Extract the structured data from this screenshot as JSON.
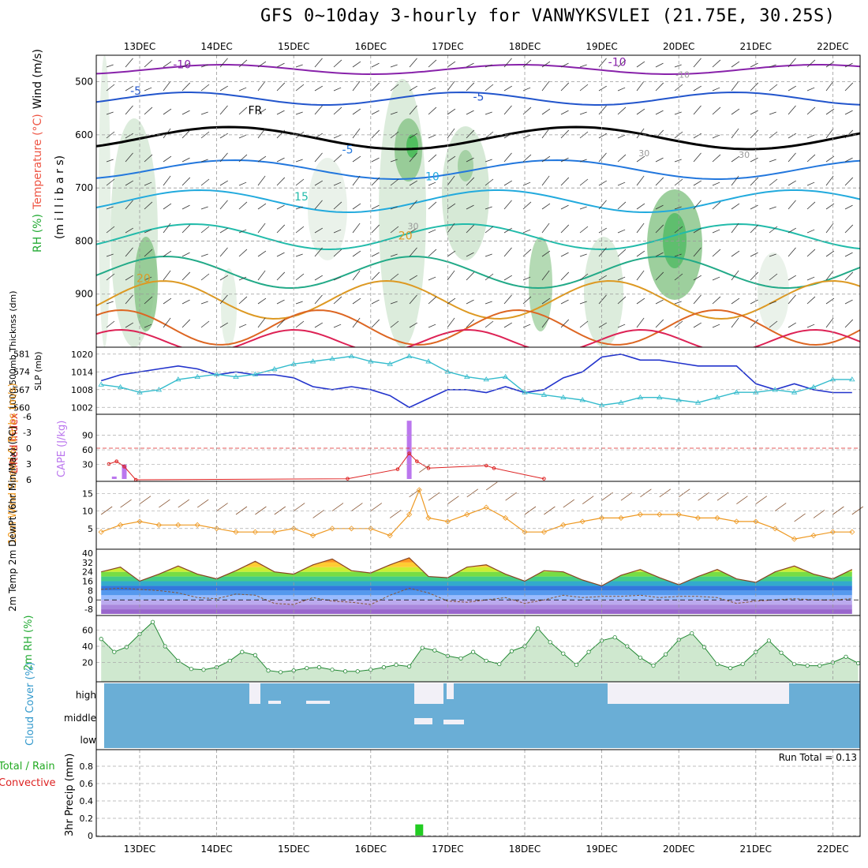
{
  "title": "GFS 0~10day 3-hourly for VANWYKSVLEI (21.75E, 30.25S)",
  "colors": {
    "rh_green": "#33bb44",
    "slp": "#2233cc",
    "thickness": "#33bbcc",
    "cape": "#bb77ee",
    "lifted": "#dd2222",
    "wind": "#ee9922",
    "cloud_blue": "#6aaed6",
    "precip": "#22cc22"
  },
  "chart_data": [
    {
      "id": "upper_air",
      "type": "heatmap",
      "ylabel_parts": [
        "RH (%)",
        "Temperature (°C)",
        "Wind (m/s)"
      ],
      "ylabel_sub": "(m i l l i b a r s)",
      "x_ticks": [
        "13DEC",
        "14DEC",
        "15DEC",
        "16DEC",
        "17DEC",
        "18DEC",
        "19DEC",
        "20DEC",
        "21DEC",
        "22DEC"
      ],
      "y_ticks": [
        "500",
        "600",
        "700",
        "800",
        "900"
      ],
      "ylim": [
        1000,
        450
      ],
      "contour_labels": [
        {
          "text": "-10",
          "color": "#8822aa",
          "x": 13.55,
          "y": 467
        },
        {
          "text": "-10",
          "color": "#8822aa",
          "x": 19.2,
          "y": 463
        },
        {
          "text": "-5",
          "color": "#2255cc",
          "x": 12.95,
          "y": 517
        },
        {
          "text": "-5",
          "color": "#2255cc",
          "x": 17.4,
          "y": 528
        },
        {
          "text": "FR",
          "color": "#000000",
          "x": 14.5,
          "y": 553
        },
        {
          "text": "-5",
          "color": "#2277dd",
          "x": 15.7,
          "y": 628
        },
        {
          "text": "10",
          "color": "#22aadd",
          "x": 16.8,
          "y": 678
        },
        {
          "text": "15",
          "color": "#22bbaa",
          "x": 15.1,
          "y": 716
        },
        {
          "text": "20",
          "color": "#dd9922",
          "x": 16.45,
          "y": 790
        },
        {
          "text": "20",
          "color": "#dd9922",
          "x": 13.05,
          "y": 870
        },
        {
          "text": "30",
          "color": "#999999",
          "x": 16.55,
          "y": 770
        },
        {
          "text": "30",
          "color": "#999999",
          "x": 19.55,
          "y": 633
        },
        {
          "text": "30",
          "color": "#999999",
          "x": 20.85,
          "y": 636
        },
        {
          "text": "-10",
          "color": "#999999",
          "x": 20.05,
          "y": 485
        }
      ]
    },
    {
      "id": "slp_thickness",
      "type": "line",
      "ylabel_left": "1000-500mb Thicknss (dm)",
      "ylabel_right": "SLP (mb)",
      "left_ticks": [
        "581",
        "574",
        "567",
        "560"
      ],
      "right_ticks": [
        "1020",
        "1014",
        "1008",
        "1002"
      ],
      "x": [
        12.5,
        12.75,
        13.0,
        13.25,
        13.5,
        13.75,
        14.0,
        14.25,
        14.5,
        14.75,
        15.0,
        15.25,
        15.5,
        15.75,
        16.0,
        16.25,
        16.5,
        16.75,
        17.0,
        17.25,
        17.5,
        17.75,
        18.0,
        18.25,
        18.5,
        18.75,
        19.0,
        19.25,
        19.5,
        19.75,
        20.0,
        20.25,
        20.5,
        20.75,
        21.0,
        21.25,
        21.5,
        21.75,
        22.0,
        22.25
      ],
      "series": [
        {
          "name": "SLP",
          "values": [
            1011,
            1013,
            1014,
            1015,
            1016,
            1015,
            1013,
            1014,
            1013,
            1013,
            1012,
            1009,
            1008,
            1009,
            1008,
            1006,
            1002,
            1005,
            1008,
            1008,
            1007,
            1009,
            1007,
            1008,
            1012,
            1014,
            1019,
            1020,
            1018,
            1018,
            1017,
            1016,
            1016,
            1016,
            1010,
            1008,
            1010,
            1008,
            1007,
            1007
          ]
        },
        {
          "name": "Thickness",
          "values": [
            569,
            568,
            566,
            567,
            571,
            572,
            573,
            572,
            573,
            575,
            577,
            578,
            579,
            580,
            578,
            577,
            580,
            578,
            574,
            572,
            571,
            572,
            566,
            565,
            564,
            563,
            561,
            562,
            564,
            564,
            563,
            562,
            564,
            566,
            566,
            567,
            566,
            568,
            571,
            571
          ]
        }
      ]
    },
    {
      "id": "cape_lifted",
      "type": "bar",
      "ylabel_left": "Lifted Index",
      "ylabel_right": "CAPE (J/kg)",
      "left_ticks": [
        "-6",
        "-3",
        "0",
        "3",
        "6"
      ],
      "right_ticks": [
        "90",
        "60",
        "30"
      ],
      "cape": [
        {
          "x": 12.67,
          "value": 5
        },
        {
          "x": 12.8,
          "value": 30
        },
        {
          "x": 16.5,
          "value": 120
        }
      ],
      "lifted": {
        "x": [
          12.6,
          12.7,
          12.8,
          12.95,
          15.7,
          16.35,
          16.5,
          16.6,
          16.75,
          17.5,
          17.6,
          18.25
        ],
        "values": [
          3,
          2.5,
          3.5,
          6,
          5.8,
          4,
          1,
          2.5,
          3.8,
          3.3,
          3.8,
          5.8
        ]
      }
    },
    {
      "id": "wind10m",
      "type": "line",
      "ylabel": "10m Wind Speed & Barbs (m/s)",
      "y_ticks": [
        "15",
        "10",
        "5"
      ],
      "x": [
        12.5,
        12.75,
        13.0,
        13.25,
        13.5,
        13.75,
        14.0,
        14.25,
        14.5,
        14.75,
        15.0,
        15.25,
        15.5,
        15.75,
        16.0,
        16.25,
        16.5,
        16.63,
        16.75,
        17.0,
        17.25,
        17.5,
        17.75,
        18.0,
        18.25,
        18.5,
        18.75,
        19.0,
        19.25,
        19.5,
        19.75,
        20.0,
        20.25,
        20.5,
        20.75,
        21.0,
        21.25,
        21.5,
        21.75,
        22.0,
        22.25
      ],
      "values": [
        4,
        6,
        7,
        6,
        6,
        6,
        5,
        4,
        4,
        4,
        5,
        3,
        5,
        5,
        5,
        3,
        9,
        16,
        8,
        7,
        9,
        11,
        8,
        4,
        4,
        6,
        7,
        8,
        8,
        9,
        9,
        9,
        8,
        8,
        7,
        7,
        5,
        2,
        3,
        4,
        4
      ]
    },
    {
      "id": "temp2m",
      "type": "area",
      "ylabel": "2m Temp 2m DewPt (6hr Min/Max) (°C)",
      "y_ticks": [
        "40",
        "32",
        "24",
        "16",
        "8",
        "0",
        "-8"
      ],
      "x": [
        12.5,
        12.75,
        13.0,
        13.25,
        13.5,
        13.75,
        14.0,
        14.25,
        14.5,
        14.75,
        15.0,
        15.25,
        15.5,
        15.75,
        16.0,
        16.25,
        16.5,
        16.75,
        17.0,
        17.25,
        17.5,
        17.75,
        18.0,
        18.25,
        18.5,
        18.75,
        19.0,
        19.25,
        19.5,
        19.75,
        20.0,
        20.25,
        20.5,
        20.75,
        21.0,
        21.25,
        21.5,
        21.75,
        22.0,
        22.25
      ],
      "series": [
        {
          "name": "2m Temp",
          "values": [
            24,
            28,
            16,
            22,
            29,
            22,
            18,
            25,
            33,
            24,
            22,
            30,
            35,
            25,
            23,
            30,
            36,
            20,
            19,
            28,
            30,
            22,
            16,
            25,
            24,
            17,
            12,
            21,
            26,
            19,
            13,
            20,
            26,
            18,
            15,
            24,
            29,
            22,
            18,
            26
          ]
        },
        {
          "name": "2m DewPt",
          "values": [
            9,
            10,
            9,
            8,
            6,
            2,
            1,
            5,
            4,
            -3,
            -4,
            2,
            -1,
            -2,
            -4,
            4,
            10,
            6,
            -1,
            -2,
            0,
            2,
            -3,
            0,
            4,
            2,
            3,
            3,
            4,
            2,
            3,
            3,
            2,
            -3,
            -1,
            0,
            1,
            0,
            0,
            1
          ]
        }
      ]
    },
    {
      "id": "rh2m",
      "type": "area",
      "ylabel": "2m RH (%)",
      "y_ticks": [
        "60",
        "40",
        "20"
      ],
      "x": [
        12.5,
        12.67,
        12.83,
        13.0,
        13.17,
        13.33,
        13.5,
        13.67,
        13.83,
        14.0,
        14.17,
        14.33,
        14.5,
        14.67,
        14.83,
        15.0,
        15.17,
        15.33,
        15.5,
        15.67,
        15.83,
        16.0,
        16.17,
        16.33,
        16.5,
        16.67,
        16.83,
        17.0,
        17.17,
        17.33,
        17.5,
        17.67,
        17.83,
        18.0,
        18.17,
        18.33,
        18.5,
        18.67,
        18.83,
        19.0,
        19.17,
        19.33,
        19.5,
        19.67,
        19.83,
        20.0,
        20.17,
        20.33,
        20.5,
        20.67,
        20.83,
        21.0,
        21.17,
        21.33,
        21.5,
        21.67,
        21.83,
        22.0,
        22.17,
        22.33
      ],
      "values": [
        49,
        33,
        39,
        55,
        70,
        40,
        22,
        12,
        11,
        14,
        22,
        33,
        29,
        10,
        8,
        10,
        13,
        14,
        11,
        9,
        9,
        11,
        14,
        17,
        15,
        38,
        35,
        28,
        25,
        33,
        22,
        18,
        34,
        40,
        62,
        45,
        31,
        17,
        33,
        47,
        51,
        40,
        26,
        16,
        30,
        48,
        56,
        39,
        18,
        13,
        18,
        33,
        47,
        32,
        18,
        16,
        16,
        20,
        27,
        19
      ]
    },
    {
      "id": "cloud_cover",
      "type": "heatmap",
      "ylabel": "Cloud Cover (%)",
      "levels": [
        "high",
        "middle",
        "low"
      ]
    },
    {
      "id": "precip",
      "type": "bar",
      "ylabel_left": "Total / Rain",
      "ylabel_left2": "Convective",
      "ylabel": "3hr Precip (mm)",
      "run_total": "Run Total = 0.13",
      "y_ticks": [
        "0.8",
        "0.6",
        "0.4",
        "0.2",
        "0"
      ],
      "bars": [
        {
          "x": 16.63,
          "value": 0.13
        }
      ],
      "x_ticks": [
        "13DEC",
        "14DEC",
        "15DEC",
        "16DEC",
        "17DEC",
        "18DEC",
        "19DEC",
        "20DEC",
        "21DEC",
        "22DEC"
      ]
    }
  ]
}
